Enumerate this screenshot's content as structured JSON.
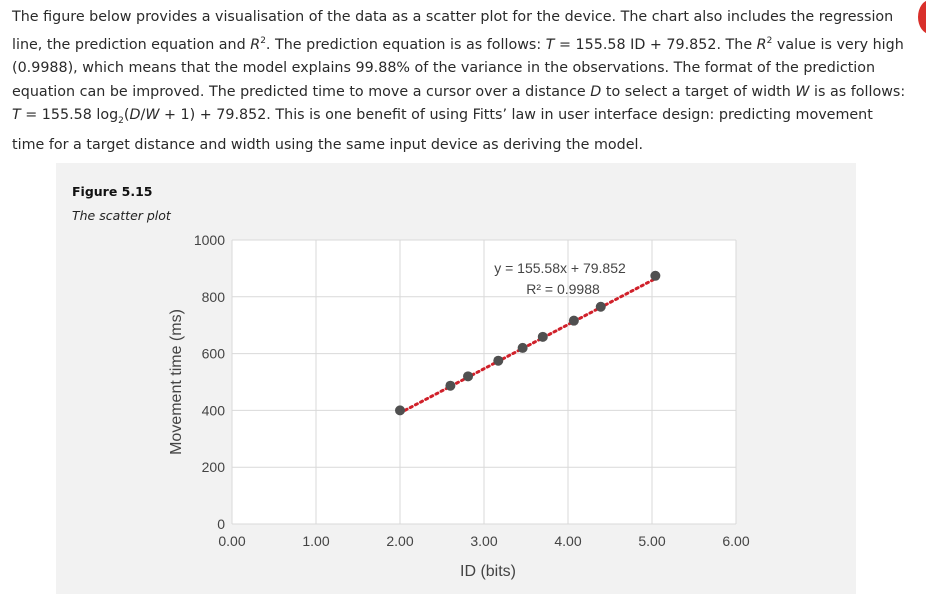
{
  "paragraph": {
    "p1": "The figure below provides a visualisation of the data as a scatter plot for the device. The chart also includes the regression line, the prediction equation and ",
    "r2a_sym": "R",
    "r2a_sup": "2",
    "p2": ". The prediction equation is as follows: ",
    "t1": "T",
    "p3": " = 155.58 ID + 79.852. The ",
    "r2b_sym": "R",
    "r2b_sup": "2",
    "p4": " value is very high (0.9988), which means that the model explains 99.88% of the variance in the observations. The format of the prediction equation can be improved. The predicted time to move a cursor over a distance ",
    "d1": "D",
    "p5": " to select a target of width ",
    "w1": "W",
    "p6": " is as follows: ",
    "t2": "T",
    "p7": " = 155.58 log",
    "sub2": "2",
    "p8": "(",
    "d2": "D",
    "p9": "/",
    "w2": "W",
    "p10": " + 1) + 79.852. This is one benefit of using Fitts’ law in user interface design: predicting movement time for a target distance and width using the same input device as deriving the model."
  },
  "figure": {
    "label": "Figure 5.15",
    "caption": "The scatter plot"
  },
  "colors": {
    "point": "#505050",
    "trendline": "#d0202a",
    "grid": "#d9d9d9",
    "plot_bg": "#ffffff",
    "figure_bg": "#f2f2f2"
  },
  "chart_data": {
    "type": "scatter",
    "title": "",
    "xlabel": "ID (bits)",
    "ylabel": "Movement time (ms)",
    "xlim": [
      0,
      6
    ],
    "ylim": [
      0,
      1000
    ],
    "x_ticks": [
      "0.00",
      "1.00",
      "2.00",
      "3.00",
      "4.00",
      "5.00",
      "6.00"
    ],
    "y_ticks": [
      "0",
      "200",
      "400",
      "600",
      "800",
      "1000"
    ],
    "grid": true,
    "legend": "none",
    "points": [
      {
        "x": 2.0,
        "y": 400
      },
      {
        "x": 2.6,
        "y": 487
      },
      {
        "x": 2.81,
        "y": 520
      },
      {
        "x": 3.17,
        "y": 575
      },
      {
        "x": 3.46,
        "y": 620
      },
      {
        "x": 3.7,
        "y": 659
      },
      {
        "x": 4.07,
        "y": 716
      },
      {
        "x": 4.39,
        "y": 765
      },
      {
        "x": 5.04,
        "y": 874
      }
    ],
    "trendline": {
      "slope": 155.58,
      "intercept": 79.852,
      "style": "dotted",
      "x_from": 2.0,
      "x_to": 5.04,
      "equation_label": "y = 155.58x + 79.852",
      "r2_label": "R² = 0.9988"
    }
  }
}
